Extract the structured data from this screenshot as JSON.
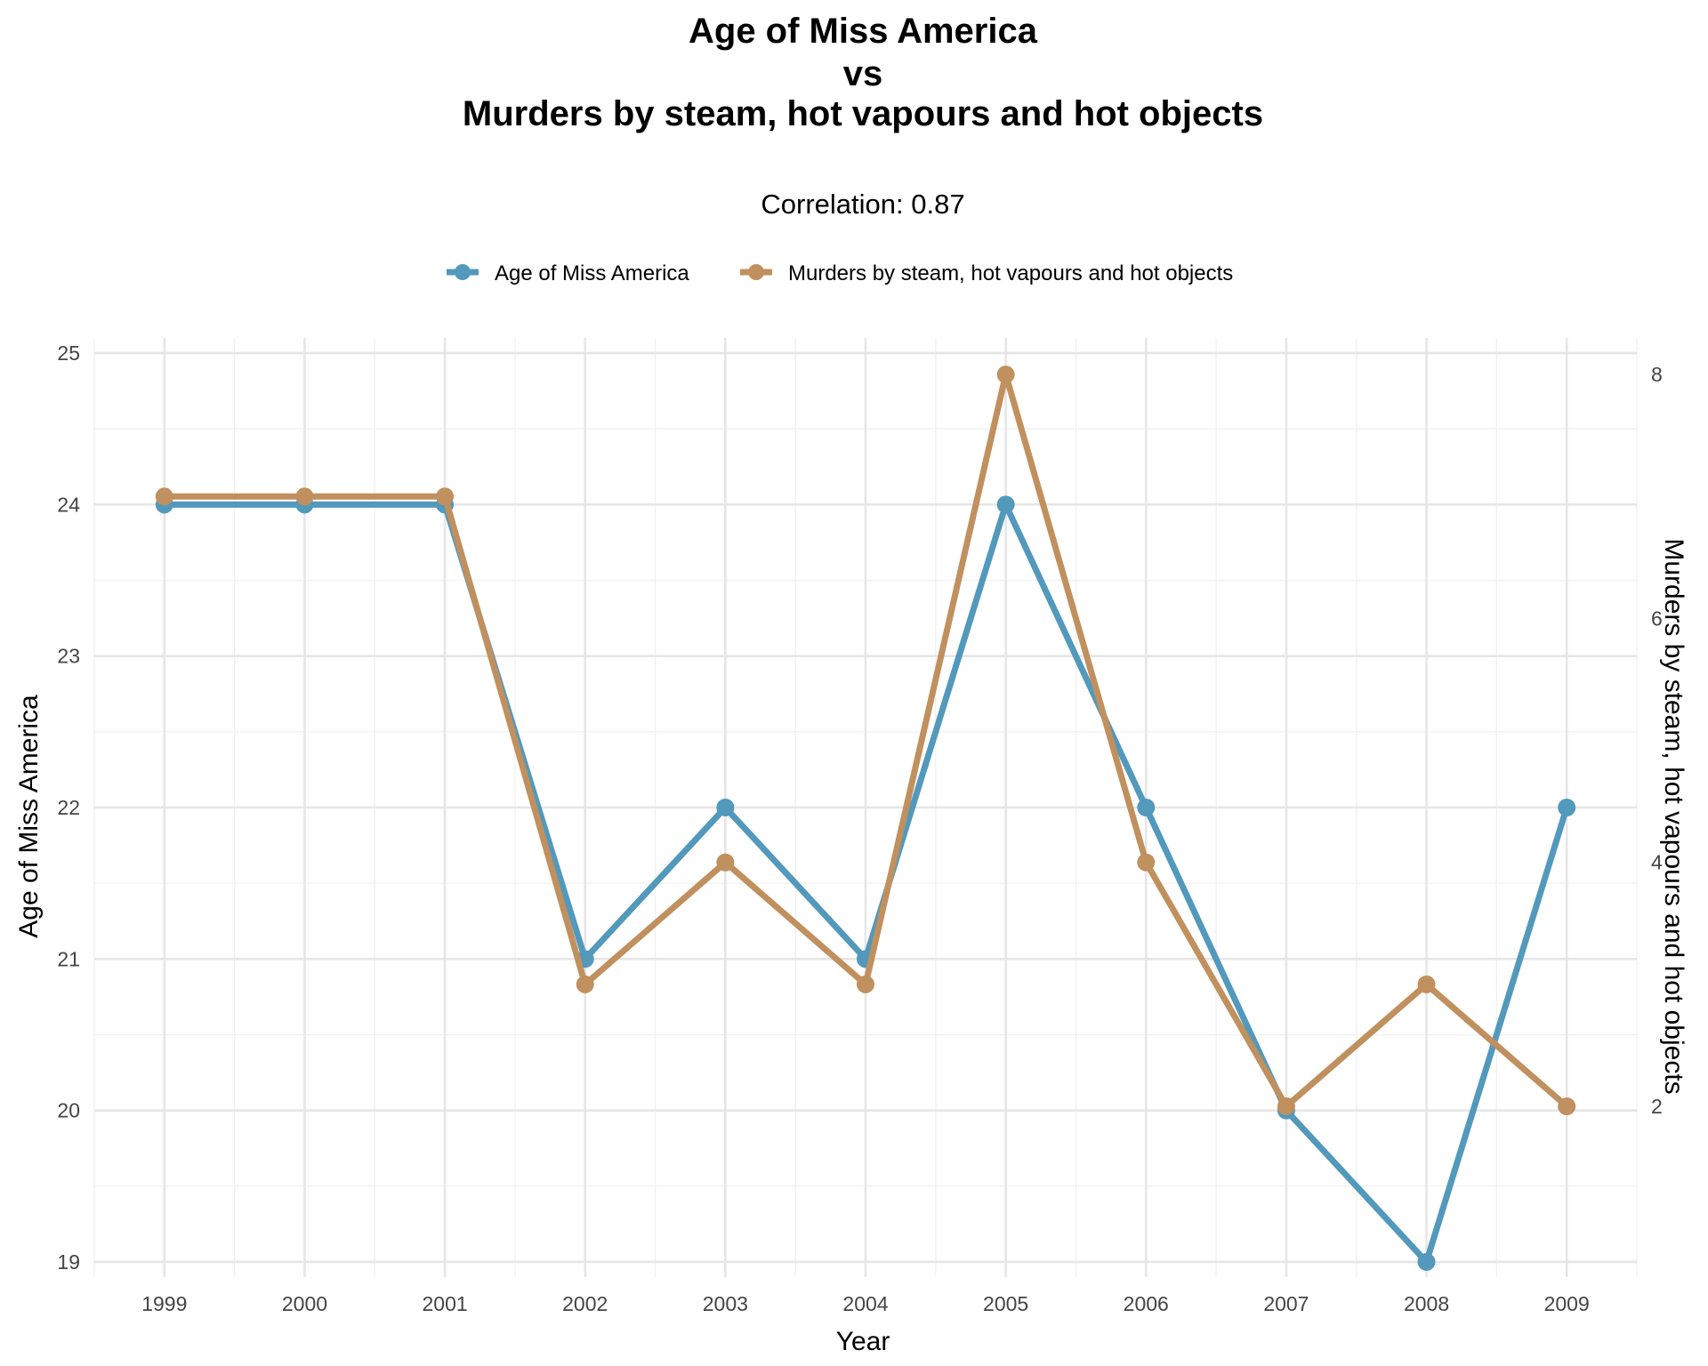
{
  "chart_data": {
    "type": "line",
    "title_lines": [
      "Age of Miss America",
      "vs",
      "Murders by steam, hot vapours and hot objects"
    ],
    "subtitle": "Correlation: 0.87",
    "xlabel": "Year",
    "ylabel_left": "Age of Miss America",
    "ylabel_right": "Murders by steam, hot vapours and hot objects",
    "x": [
      1999,
      2000,
      2001,
      2002,
      2003,
      2004,
      2005,
      2006,
      2007,
      2008,
      2009
    ],
    "xlim": [
      1998.5,
      2009.5
    ],
    "ylim_left": [
      18.9,
      25.1
    ],
    "ylim_right": [
      0.6,
      8.3
    ],
    "yticks_left": [
      19,
      20,
      21,
      22,
      23,
      24,
      25
    ],
    "yticks_right": [
      2,
      4,
      6,
      8
    ],
    "legend_position": "top",
    "grid": true,
    "series": [
      {
        "name": "Age of Miss America",
        "axis": "left",
        "color": "#5299BC",
        "values": [
          24,
          24,
          24,
          21,
          22,
          21,
          24,
          22,
          20,
          19,
          22
        ]
      },
      {
        "name": "Murders by steam, hot vapours and hot objects",
        "axis": "right",
        "color": "#C0905E",
        "values": [
          7,
          7,
          7,
          3,
          4,
          3,
          8,
          4,
          2,
          3,
          2
        ]
      }
    ]
  }
}
